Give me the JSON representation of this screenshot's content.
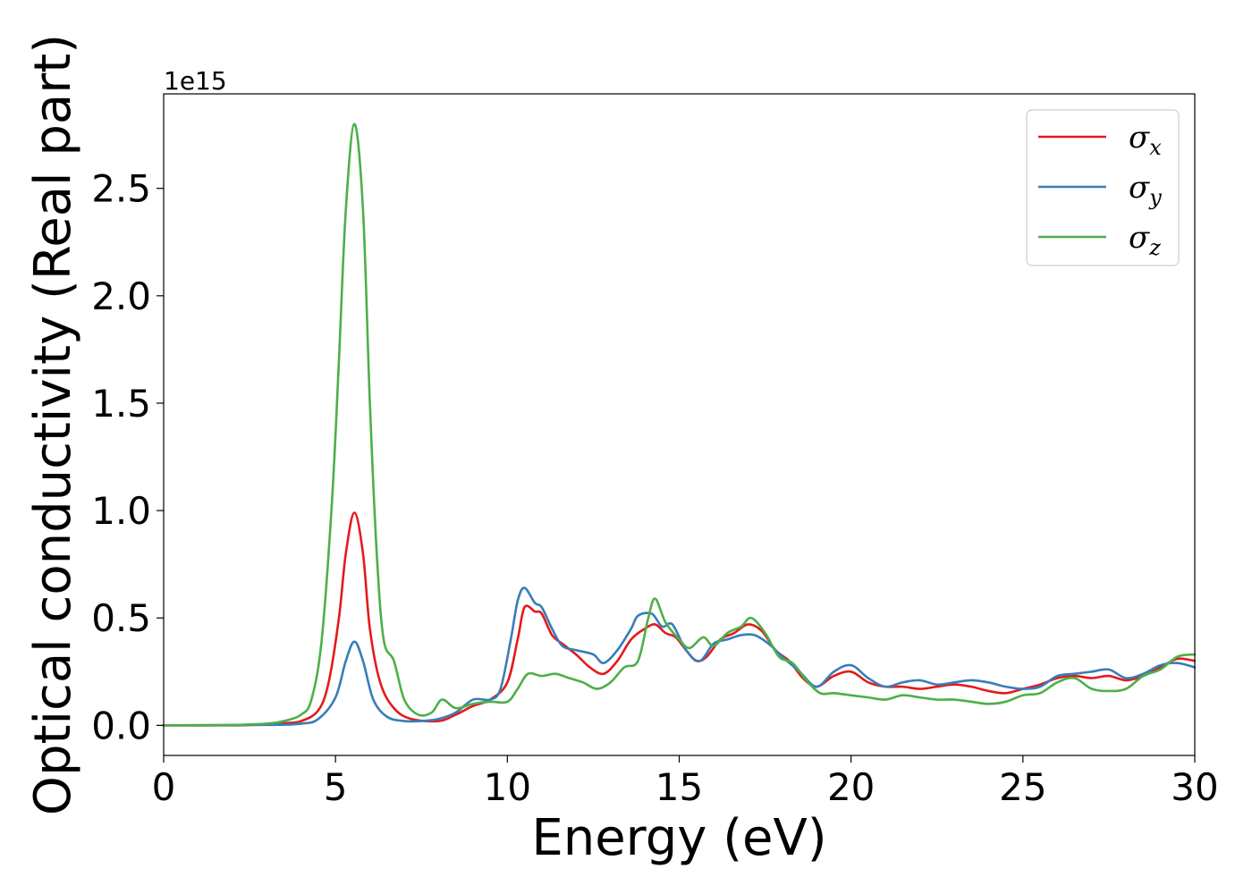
{
  "chart_data": {
    "type": "line",
    "xlabel": "Energy (eV)",
    "ylabel": "Optical conductivity (Real part)",
    "y_offset_label": "1e15",
    "xlim": [
      0,
      30
    ],
    "ylim": [
      -0.14,
      2.94
    ],
    "x_ticks": [
      0,
      5,
      10,
      15,
      20,
      25,
      30
    ],
    "y_ticks": [
      0.0,
      0.5,
      1.0,
      1.5,
      2.0,
      2.5
    ],
    "y_tick_labels": [
      "0.0",
      "0.5",
      "1.0",
      "1.5",
      "2.0",
      "2.5"
    ],
    "grid": false,
    "legend_position": "top-right",
    "series": [
      {
        "name": "σx",
        "symbol": "σ",
        "subscript": "x",
        "color": "#e41a1c",
        "points": [
          [
            0,
            0
          ],
          [
            2,
            0
          ],
          [
            3,
            0.005
          ],
          [
            3.5,
            0.01
          ],
          [
            4,
            0.02
          ],
          [
            4.5,
            0.07
          ],
          [
            4.8,
            0.2
          ],
          [
            5.1,
            0.5
          ],
          [
            5.3,
            0.8
          ],
          [
            5.55,
            0.99
          ],
          [
            5.8,
            0.8
          ],
          [
            6.0,
            0.45
          ],
          [
            6.3,
            0.2
          ],
          [
            6.7,
            0.08
          ],
          [
            7.2,
            0.03
          ],
          [
            8,
            0.02
          ],
          [
            8.5,
            0.05
          ],
          [
            9,
            0.09
          ],
          [
            9.5,
            0.12
          ],
          [
            10,
            0.2
          ],
          [
            10.3,
            0.4
          ],
          [
            10.5,
            0.55
          ],
          [
            10.8,
            0.53
          ],
          [
            11,
            0.52
          ],
          [
            11.3,
            0.42
          ],
          [
            11.6,
            0.38
          ],
          [
            12,
            0.33
          ],
          [
            12.4,
            0.27
          ],
          [
            12.8,
            0.24
          ],
          [
            13.2,
            0.3
          ],
          [
            13.6,
            0.4
          ],
          [
            14,
            0.45
          ],
          [
            14.3,
            0.47
          ],
          [
            14.6,
            0.43
          ],
          [
            14.9,
            0.41
          ],
          [
            15.2,
            0.35
          ],
          [
            15.5,
            0.3
          ],
          [
            15.8,
            0.32
          ],
          [
            16.2,
            0.4
          ],
          [
            16.6,
            0.43
          ],
          [
            17,
            0.47
          ],
          [
            17.4,
            0.44
          ],
          [
            17.8,
            0.35
          ],
          [
            18.2,
            0.3
          ],
          [
            18.6,
            0.22
          ],
          [
            19,
            0.18
          ],
          [
            19.5,
            0.23
          ],
          [
            20,
            0.25
          ],
          [
            20.5,
            0.2
          ],
          [
            21,
            0.18
          ],
          [
            21.5,
            0.18
          ],
          [
            22,
            0.17
          ],
          [
            22.5,
            0.18
          ],
          [
            23,
            0.19
          ],
          [
            23.5,
            0.18
          ],
          [
            24,
            0.16
          ],
          [
            24.5,
            0.15
          ],
          [
            25,
            0.17
          ],
          [
            25.5,
            0.19
          ],
          [
            26,
            0.22
          ],
          [
            26.5,
            0.23
          ],
          [
            27,
            0.22
          ],
          [
            27.5,
            0.23
          ],
          [
            28,
            0.21
          ],
          [
            28.5,
            0.23
          ],
          [
            29,
            0.27
          ],
          [
            29.5,
            0.31
          ],
          [
            30,
            0.3
          ]
        ]
      },
      {
        "name": "σy",
        "symbol": "σ",
        "subscript": "y",
        "color": "#377eb8",
        "points": [
          [
            0,
            0
          ],
          [
            3,
            0.002
          ],
          [
            4,
            0.008
          ],
          [
            4.5,
            0.03
          ],
          [
            5,
            0.13
          ],
          [
            5.3,
            0.3
          ],
          [
            5.55,
            0.39
          ],
          [
            5.8,
            0.3
          ],
          [
            6.1,
            0.12
          ],
          [
            6.5,
            0.04
          ],
          [
            7,
            0.02
          ],
          [
            7.5,
            0.02
          ],
          [
            8,
            0.03
          ],
          [
            8.5,
            0.06
          ],
          [
            9,
            0.12
          ],
          [
            9.5,
            0.12
          ],
          [
            9.8,
            0.17
          ],
          [
            10.1,
            0.4
          ],
          [
            10.3,
            0.58
          ],
          [
            10.5,
            0.64
          ],
          [
            10.8,
            0.57
          ],
          [
            11,
            0.55
          ],
          [
            11.3,
            0.45
          ],
          [
            11.6,
            0.37
          ],
          [
            12,
            0.35
          ],
          [
            12.5,
            0.33
          ],
          [
            12.8,
            0.29
          ],
          [
            13.2,
            0.35
          ],
          [
            13.6,
            0.45
          ],
          [
            13.8,
            0.51
          ],
          [
            14.2,
            0.52
          ],
          [
            14.5,
            0.46
          ],
          [
            14.8,
            0.47
          ],
          [
            15.2,
            0.35
          ],
          [
            15.6,
            0.3
          ],
          [
            16,
            0.38
          ],
          [
            16.4,
            0.4
          ],
          [
            16.8,
            0.42
          ],
          [
            17.2,
            0.42
          ],
          [
            17.6,
            0.38
          ],
          [
            18,
            0.32
          ],
          [
            18.5,
            0.25
          ],
          [
            19,
            0.18
          ],
          [
            19.5,
            0.25
          ],
          [
            20,
            0.28
          ],
          [
            20.5,
            0.22
          ],
          [
            21,
            0.18
          ],
          [
            21.5,
            0.2
          ],
          [
            22,
            0.21
          ],
          [
            22.5,
            0.19
          ],
          [
            23,
            0.2
          ],
          [
            23.5,
            0.21
          ],
          [
            24,
            0.2
          ],
          [
            24.5,
            0.18
          ],
          [
            25,
            0.17
          ],
          [
            25.5,
            0.18
          ],
          [
            26,
            0.23
          ],
          [
            26.5,
            0.24
          ],
          [
            27,
            0.25
          ],
          [
            27.5,
            0.26
          ],
          [
            28,
            0.22
          ],
          [
            28.5,
            0.24
          ],
          [
            29,
            0.28
          ],
          [
            29.5,
            0.29
          ],
          [
            30,
            0.27
          ]
        ]
      },
      {
        "name": "σz",
        "symbol": "σ",
        "subscript": "z",
        "color": "#4daf4a",
        "points": [
          [
            0,
            0
          ],
          [
            2,
            0.002
          ],
          [
            3,
            0.008
          ],
          [
            3.5,
            0.02
          ],
          [
            4,
            0.05
          ],
          [
            4.3,
            0.12
          ],
          [
            4.6,
            0.4
          ],
          [
            4.9,
            1.05
          ],
          [
            5.1,
            1.7
          ],
          [
            5.3,
            2.4
          ],
          [
            5.55,
            2.8
          ],
          [
            5.8,
            2.4
          ],
          [
            6.0,
            1.5
          ],
          [
            6.2,
            0.8
          ],
          [
            6.4,
            0.4
          ],
          [
            6.7,
            0.3
          ],
          [
            7,
            0.12
          ],
          [
            7.4,
            0.05
          ],
          [
            7.8,
            0.06
          ],
          [
            8.1,
            0.12
          ],
          [
            8.5,
            0.08
          ],
          [
            9,
            0.1
          ],
          [
            9.5,
            0.11
          ],
          [
            10,
            0.11
          ],
          [
            10.3,
            0.17
          ],
          [
            10.6,
            0.24
          ],
          [
            11,
            0.23
          ],
          [
            11.4,
            0.24
          ],
          [
            11.8,
            0.22
          ],
          [
            12.2,
            0.2
          ],
          [
            12.6,
            0.17
          ],
          [
            13,
            0.2
          ],
          [
            13.4,
            0.27
          ],
          [
            13.8,
            0.3
          ],
          [
            14.1,
            0.5
          ],
          [
            14.3,
            0.59
          ],
          [
            14.6,
            0.48
          ],
          [
            15,
            0.4
          ],
          [
            15.3,
            0.36
          ],
          [
            15.7,
            0.41
          ],
          [
            16,
            0.37
          ],
          [
            16.4,
            0.43
          ],
          [
            16.8,
            0.46
          ],
          [
            17.1,
            0.5
          ],
          [
            17.5,
            0.43
          ],
          [
            17.9,
            0.32
          ],
          [
            18.3,
            0.29
          ],
          [
            18.7,
            0.21
          ],
          [
            19.1,
            0.15
          ],
          [
            19.5,
            0.15
          ],
          [
            20,
            0.14
          ],
          [
            20.5,
            0.13
          ],
          [
            21,
            0.12
          ],
          [
            21.5,
            0.14
          ],
          [
            22,
            0.13
          ],
          [
            22.5,
            0.12
          ],
          [
            23,
            0.12
          ],
          [
            23.5,
            0.11
          ],
          [
            24,
            0.1
          ],
          [
            24.5,
            0.11
          ],
          [
            25,
            0.14
          ],
          [
            25.5,
            0.15
          ],
          [
            26,
            0.2
          ],
          [
            26.5,
            0.22
          ],
          [
            27,
            0.17
          ],
          [
            27.5,
            0.16
          ],
          [
            28,
            0.17
          ],
          [
            28.5,
            0.23
          ],
          [
            29,
            0.26
          ],
          [
            29.5,
            0.32
          ],
          [
            30,
            0.33
          ]
        ]
      }
    ]
  }
}
